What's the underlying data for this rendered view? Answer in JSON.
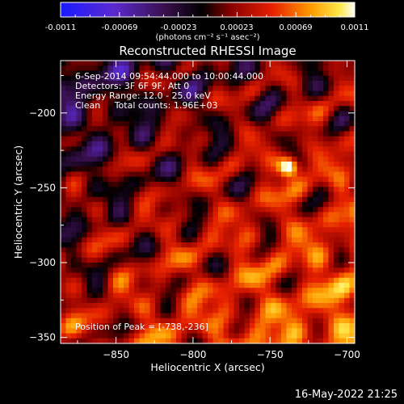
{
  "colorbar": {
    "ticks": [
      "-0.0011",
      "-0.00069",
      "-0.00023",
      "0.00023",
      "0.00069",
      "0.0011"
    ],
    "min": -0.0011,
    "max": 0.0011,
    "unit": "(photons cm⁻² s⁻¹ asec⁻²)"
  },
  "chart_data": {
    "type": "heatmap",
    "title": "Reconstructed RHESSI Image",
    "xlabel": "Heliocentric X (arcsec)",
    "ylabel": "Heliocentric Y (arcsec)",
    "xlim": [
      -886,
      -695
    ],
    "ylim": [
      -354,
      -165
    ],
    "xticks": [
      -850,
      -800,
      -750,
      -700
    ],
    "yticks": [
      -350,
      -300,
      -250,
      -200
    ],
    "colormap": "RHESSI Sunset (blue-purple-black-red-orange-yellow-white)",
    "annotations": {
      "time": "6-Sep-2014 09:54:44.000 to 10:00:44.000",
      "detectors": "Detectors: 3F 6F 9F, Att 0",
      "energy": "Energy Range: 12.0 - 25.0 keV",
      "clean": "Clean     Total counts: 1.96E+03",
      "peak": "Position of Peak = [-738,-236]"
    },
    "peak": {
      "x": -738,
      "y": -236
    }
  },
  "footer": {
    "date": "16-May-2022 21:25"
  }
}
